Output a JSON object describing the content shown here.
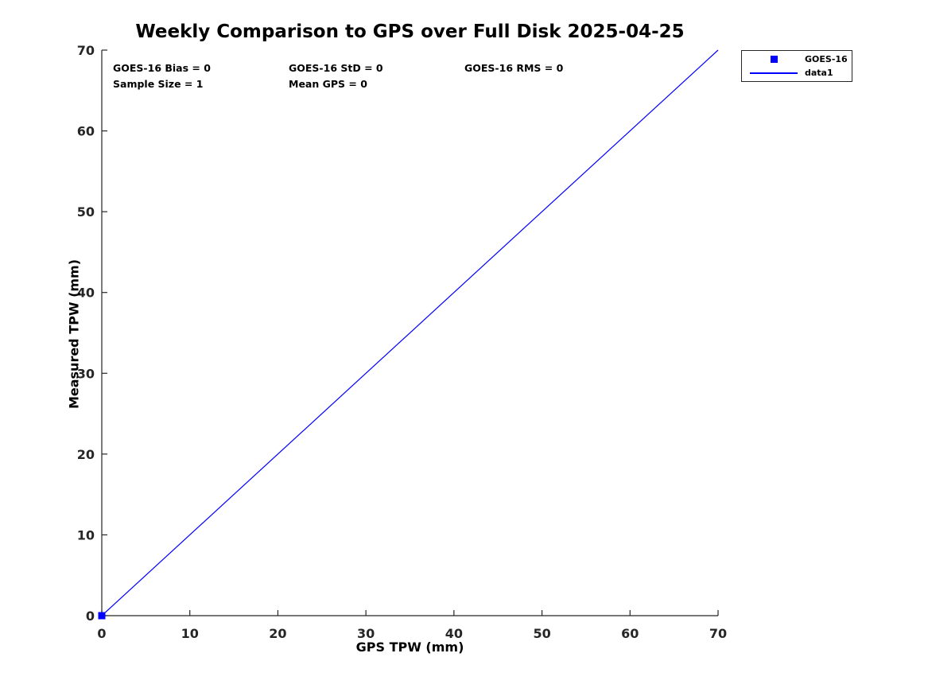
{
  "colors": {
    "accent": "#0000ff",
    "axis": "#262626",
    "text": "#000000",
    "background": "#ffffff"
  },
  "chart_data": {
    "type": "line",
    "title": "Weekly Comparison to GPS over Full Disk 2025-04-25",
    "xlabel": "GPS TPW (mm)",
    "ylabel": "Measured TPW (mm)",
    "xlim": [
      0,
      70
    ],
    "ylim": [
      0,
      70
    ],
    "x_ticks": [
      0,
      10,
      20,
      30,
      40,
      50,
      60,
      70
    ],
    "y_ticks": [
      0,
      10,
      20,
      30,
      40,
      50,
      60,
      70
    ],
    "grid": false,
    "box": false,
    "legend_position": "outside-top-right",
    "series": [
      {
        "name": "GOES-16",
        "type": "scatter",
        "marker": "square",
        "color": "#0000ff",
        "x": [
          0
        ],
        "y": [
          0
        ]
      },
      {
        "name": "data1",
        "type": "line",
        "color": "#0000ff",
        "x": [
          0,
          70
        ],
        "y": [
          0,
          70
        ]
      }
    ],
    "annotations": [
      {
        "text": "GOES-16 Bias = 0"
      },
      {
        "text": "GOES-16 StD = 0"
      },
      {
        "text": "GOES-16 RMS = 0"
      },
      {
        "text": "Sample Size = 1"
      },
      {
        "text": "Mean GPS = 0"
      }
    ]
  }
}
